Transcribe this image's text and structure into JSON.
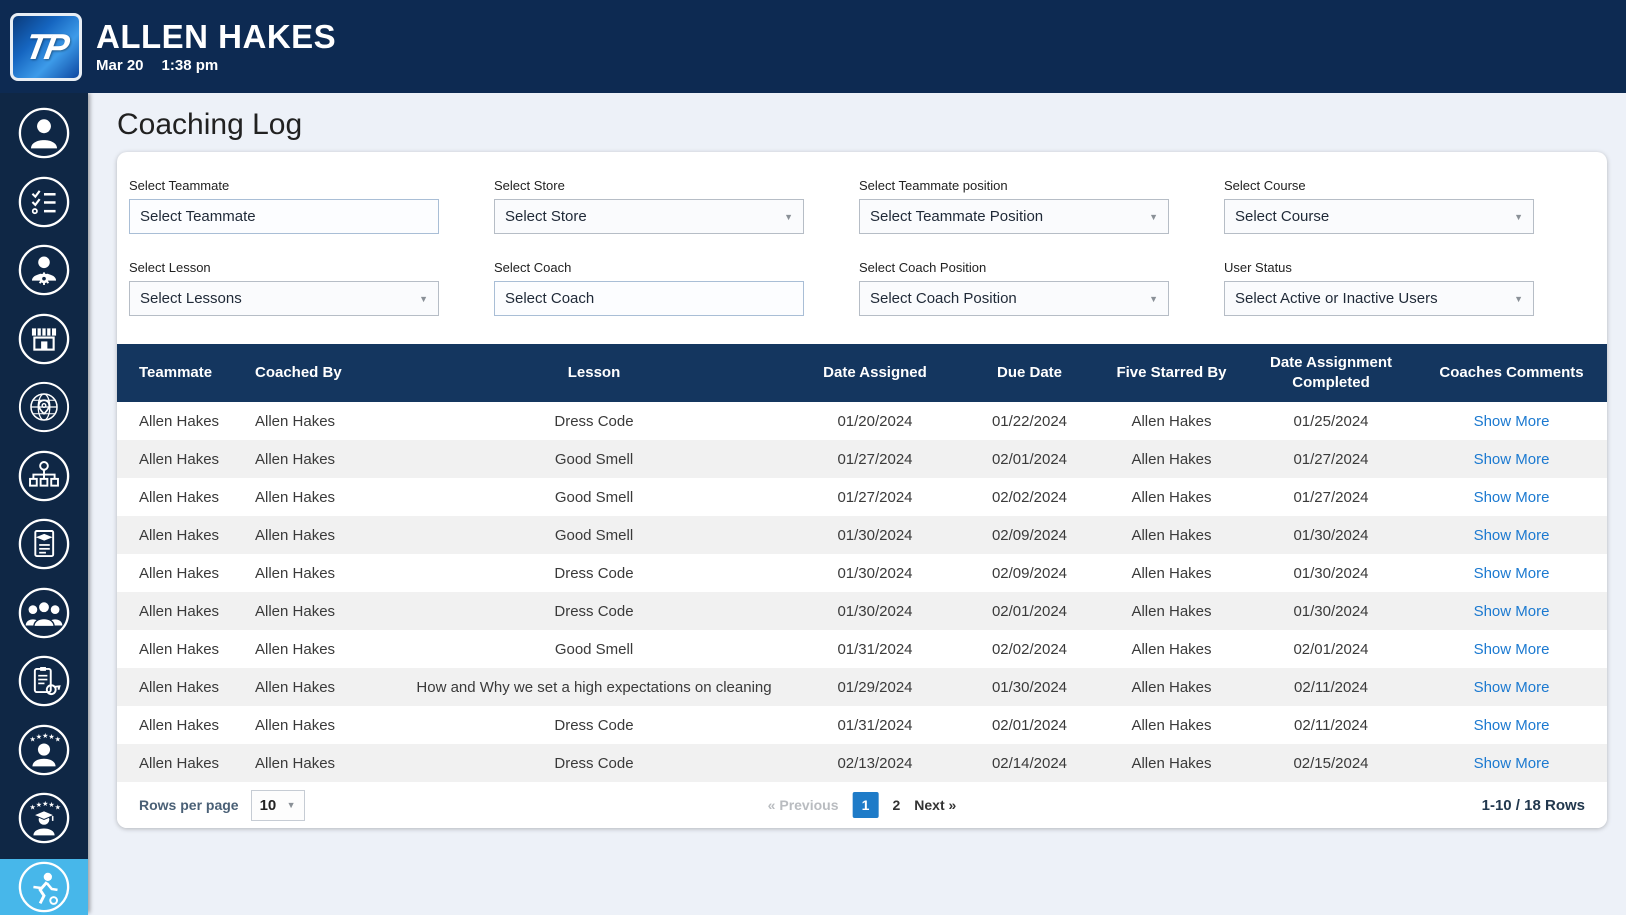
{
  "header": {
    "logo_text": "TP",
    "title": "ALLEN HAKES",
    "date": "Mar 20",
    "time": "1:38 pm"
  },
  "sidebar": {
    "items": [
      {
        "icon": "user-icon"
      },
      {
        "icon": "checklist-icon"
      },
      {
        "icon": "user-gear-icon"
      },
      {
        "icon": "store-icon"
      },
      {
        "icon": "globe-pin-icon"
      },
      {
        "icon": "org-chart-icon"
      },
      {
        "icon": "certificate-icon"
      },
      {
        "icon": "group-icon"
      },
      {
        "icon": "clipboard-whistle-icon"
      },
      {
        "icon": "five-star-person-icon"
      },
      {
        "icon": "five-star-graduate-icon"
      },
      {
        "icon": "coaching-icon",
        "active": true
      }
    ]
  },
  "page": {
    "title": "Coaching Log"
  },
  "filters": [
    {
      "label": "Select Teammate",
      "value": "Select Teammate",
      "type": "input"
    },
    {
      "label": "Select Store",
      "value": "Select Store",
      "type": "select"
    },
    {
      "label": "Select Teammate position",
      "value": "Select Teammate Position",
      "type": "select"
    },
    {
      "label": "Select Course",
      "value": "Select Course",
      "type": "select"
    },
    {
      "label": "Select Lesson",
      "value": "Select Lessons",
      "type": "select"
    },
    {
      "label": "Select Coach",
      "value": "Select Coach",
      "type": "input"
    },
    {
      "label": "Select Coach Position",
      "value": "Select Coach Position",
      "type": "select"
    },
    {
      "label": "User Status",
      "value": "Select Active or Inactive Users",
      "type": "select"
    }
  ],
  "table": {
    "columns": [
      "Teammate",
      "Coached By",
      "Lesson",
      "Date Assigned",
      "Due Date",
      "Five Starred By",
      "Date Assignment Completed",
      "Coaches Comments"
    ],
    "rows": [
      {
        "teammate": "Allen Hakes",
        "coached_by": "Allen Hakes",
        "lesson": "Dress Code",
        "date_assigned": "01/20/2024",
        "due_date": "01/22/2024",
        "five_starred_by": "Allen Hakes",
        "date_completed": "01/25/2024",
        "comments_link": "Show More"
      },
      {
        "teammate": "Allen Hakes",
        "coached_by": "Allen Hakes",
        "lesson": "Good Smell",
        "date_assigned": "01/27/2024",
        "due_date": "02/01/2024",
        "five_starred_by": "Allen Hakes",
        "date_completed": "01/27/2024",
        "comments_link": "Show More"
      },
      {
        "teammate": "Allen Hakes",
        "coached_by": "Allen Hakes",
        "lesson": "Good Smell",
        "date_assigned": "01/27/2024",
        "due_date": "02/02/2024",
        "five_starred_by": "Allen Hakes",
        "date_completed": "01/27/2024",
        "comments_link": "Show More"
      },
      {
        "teammate": "Allen Hakes",
        "coached_by": "Allen Hakes",
        "lesson": "Good Smell",
        "date_assigned": "01/30/2024",
        "due_date": "02/09/2024",
        "five_starred_by": "Allen Hakes",
        "date_completed": "01/30/2024",
        "comments_link": "Show More"
      },
      {
        "teammate": "Allen Hakes",
        "coached_by": "Allen Hakes",
        "lesson": "Dress Code",
        "date_assigned": "01/30/2024",
        "due_date": "02/09/2024",
        "five_starred_by": "Allen Hakes",
        "date_completed": "01/30/2024",
        "comments_link": "Show More"
      },
      {
        "teammate": "Allen Hakes",
        "coached_by": "Allen Hakes",
        "lesson": "Dress Code",
        "date_assigned": "01/30/2024",
        "due_date": "02/01/2024",
        "five_starred_by": "Allen Hakes",
        "date_completed": "01/30/2024",
        "comments_link": "Show More"
      },
      {
        "teammate": "Allen Hakes",
        "coached_by": "Allen Hakes",
        "lesson": "Good Smell",
        "date_assigned": "01/31/2024",
        "due_date": "02/02/2024",
        "five_starred_by": "Allen Hakes",
        "date_completed": "02/01/2024",
        "comments_link": "Show More"
      },
      {
        "teammate": "Allen Hakes",
        "coached_by": "Allen Hakes",
        "lesson": "How and Why we set a high expectations on cleaning",
        "date_assigned": "01/29/2024",
        "due_date": "01/30/2024",
        "five_starred_by": "Allen Hakes",
        "date_completed": "02/11/2024",
        "comments_link": "Show More"
      },
      {
        "teammate": "Allen Hakes",
        "coached_by": "Allen Hakes",
        "lesson": "Dress Code",
        "date_assigned": "01/31/2024",
        "due_date": "02/01/2024",
        "five_starred_by": "Allen Hakes",
        "date_completed": "02/11/2024",
        "comments_link": "Show More"
      },
      {
        "teammate": "Allen Hakes",
        "coached_by": "Allen Hakes",
        "lesson": "Dress Code",
        "date_assigned": "02/13/2024",
        "due_date": "02/14/2024",
        "five_starred_by": "Allen Hakes",
        "date_completed": "02/15/2024",
        "comments_link": "Show More"
      }
    ]
  },
  "footer": {
    "rows_per_page_label": "Rows per page",
    "rows_per_page_value": "10",
    "prev_arrow": "«",
    "prev_label": "Previous",
    "page1": "1",
    "page2": "2",
    "next_label": "Next",
    "next_arrow": "»",
    "range": "1-10 / 18 Rows"
  },
  "colors": {
    "header_navy": "#0d2a52",
    "sidebar_navy": "#0f2745",
    "table_header_navy": "#14365f",
    "active_item_blue": "#47b7ea",
    "link_blue": "#1b79d0",
    "page_bg": "#edf1f8",
    "row_alt": "#f1f1f1"
  }
}
